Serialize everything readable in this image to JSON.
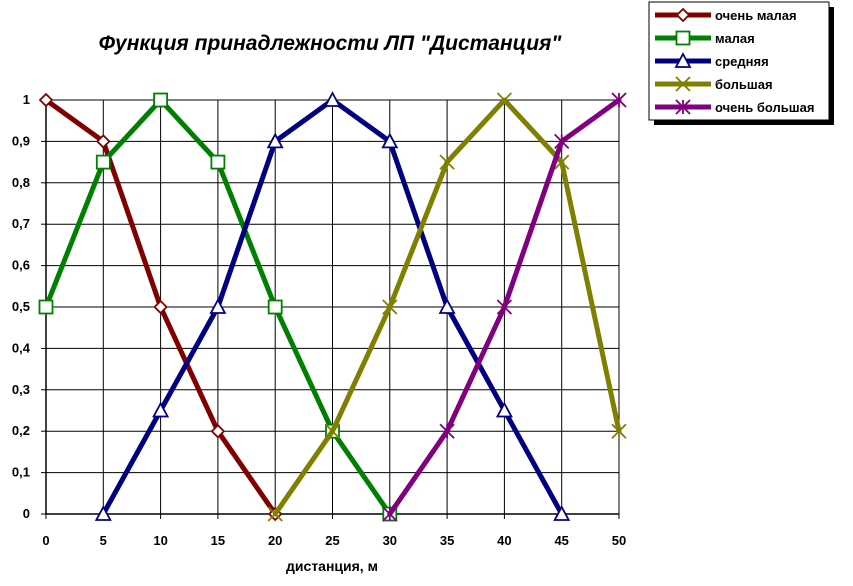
{
  "chart_data": {
    "type": "line",
    "title": "Функция принадлежности ЛП  \"Дистанция\"",
    "xlabel": "дистанция, м",
    "ylabel": "",
    "x": [
      0,
      5,
      10,
      15,
      20,
      25,
      30,
      35,
      40,
      45,
      50
    ],
    "x_tick_labels": [
      "0",
      "5",
      "10",
      "15",
      "20",
      "25",
      "30",
      "35",
      "40",
      "45",
      "50"
    ],
    "y_tick_labels": [
      "0",
      "0,1",
      "0,2",
      "0,3",
      "0,4",
      "0,5",
      "0,6",
      "0,7",
      "0,8",
      "0,9",
      "1"
    ],
    "xlim": [
      0,
      50
    ],
    "ylim": [
      0,
      1
    ],
    "grid": true,
    "legend_position": "top-right",
    "series": [
      {
        "name": "очень малая",
        "color": "#800000",
        "marker": "diamond",
        "points": [
          [
            0,
            1
          ],
          [
            5,
            0.9
          ],
          [
            10,
            0.5
          ],
          [
            15,
            0.2
          ],
          [
            20,
            0
          ]
        ]
      },
      {
        "name": "малая",
        "color": "#008000",
        "marker": "square",
        "points": [
          [
            0,
            0.5
          ],
          [
            5,
            0.85
          ],
          [
            10,
            1
          ],
          [
            15,
            0.85
          ],
          [
            20,
            0.5
          ],
          [
            25,
            0.2
          ],
          [
            30,
            0
          ]
        ]
      },
      {
        "name": "средняя",
        "color": "#000080",
        "marker": "triangle",
        "points": [
          [
            5,
            0
          ],
          [
            10,
            0.25
          ],
          [
            15,
            0.5
          ],
          [
            20,
            0.9
          ],
          [
            25,
            1
          ],
          [
            30,
            0.9
          ],
          [
            35,
            0.5
          ],
          [
            40,
            0.25
          ],
          [
            45,
            0
          ]
        ]
      },
      {
        "name": "большая",
        "color": "#808000",
        "marker": "x",
        "points": [
          [
            20,
            0
          ],
          [
            25,
            0.2
          ],
          [
            30,
            0.5
          ],
          [
            35,
            0.85
          ],
          [
            40,
            1
          ],
          [
            45,
            0.85
          ],
          [
            50,
            0.2
          ]
        ]
      },
      {
        "name": "очень большая",
        "color": "#800080",
        "marker": "star",
        "points": [
          [
            30,
            0
          ],
          [
            35,
            0.2
          ],
          [
            40,
            0.5
          ],
          [
            45,
            0.9
          ],
          [
            50,
            1
          ]
        ]
      }
    ]
  }
}
